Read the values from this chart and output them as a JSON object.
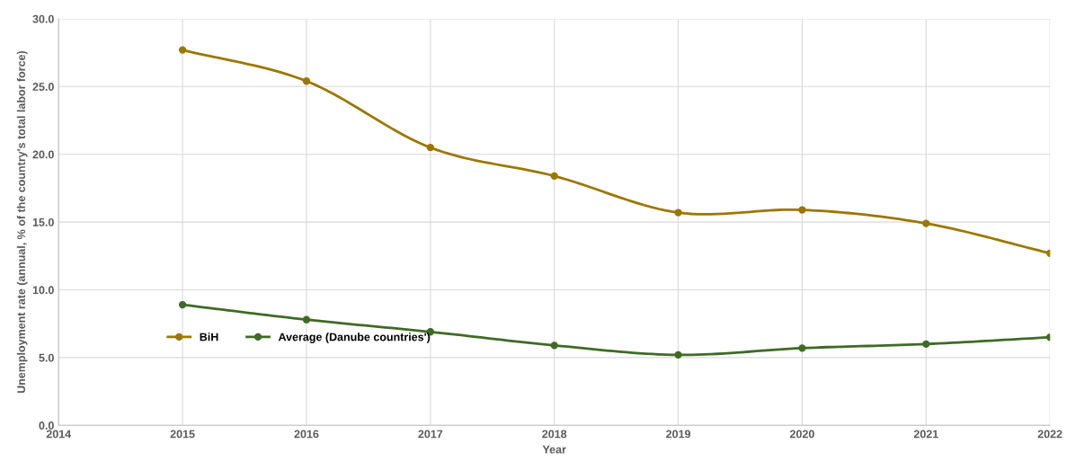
{
  "chart_data": {
    "type": "line",
    "xlabel": "Year",
    "ylabel": "Unemployment rate (annual, % of the country's total labor force)",
    "x": [
      2015,
      2016,
      2017,
      2018,
      2019,
      2020,
      2021,
      2022
    ],
    "series": [
      {
        "name": "BiH",
        "color": "#9c7700",
        "values": [
          27.7,
          25.4,
          20.5,
          18.4,
          15.7,
          15.9,
          14.9,
          12.7
        ]
      },
      {
        "name": "Average (Danube countries')",
        "color": "#3f6b25",
        "values": [
          8.9,
          7.8,
          6.9,
          5.9,
          5.2,
          5.7,
          6.0,
          6.5
        ]
      }
    ],
    "xlim": [
      2014,
      2022
    ],
    "xticks": [
      2014,
      2015,
      2016,
      2017,
      2018,
      2019,
      2020,
      2021,
      2022
    ],
    "ylim": [
      0,
      30
    ],
    "yticks": [
      {
        "value": 0,
        "label": "0.0"
      },
      {
        "value": 5,
        "label": "5.0"
      },
      {
        "value": 10,
        "label": "10.0"
      },
      {
        "value": 15,
        "label": "15.0"
      },
      {
        "value": 20,
        "label": "20.0"
      },
      {
        "value": 25,
        "label": "25.0"
      },
      {
        "value": 30,
        "label": "30.0"
      }
    ],
    "grid": true,
    "legend": "left",
    "marker": "circle",
    "line_style": "solid"
  }
}
